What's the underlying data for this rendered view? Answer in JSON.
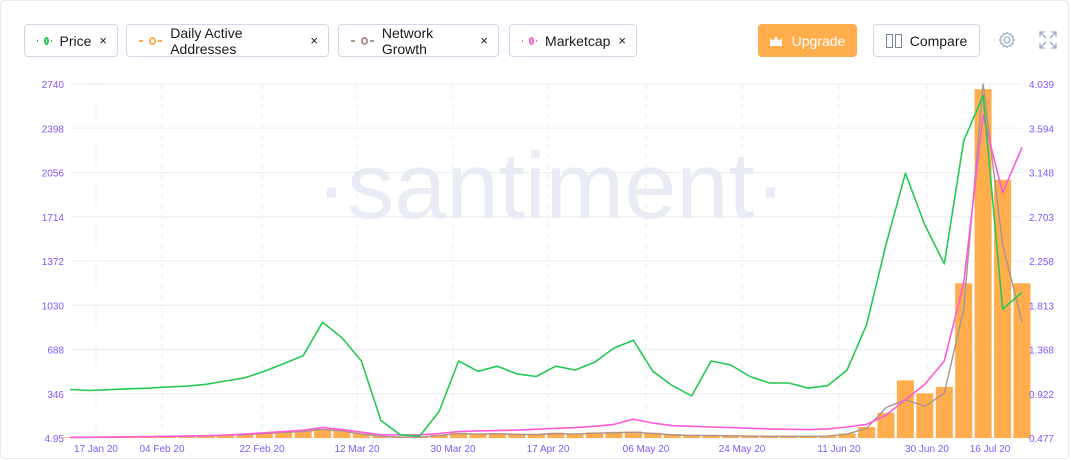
{
  "toolbar": {
    "metrics": [
      {
        "label": "Price",
        "color": "#26c953"
      },
      {
        "label": "Daily Active Addresses",
        "color": "#ffad4d"
      },
      {
        "label": "Network Growth",
        "color": "#ac948c"
      },
      {
        "label": "Marketcap",
        "color": "#ff5bd6"
      }
    ],
    "close_glyph": "×",
    "upgrade_label": "Upgrade",
    "compare_label": "Compare",
    "icons": [
      "crown-icon",
      "compare-icon",
      "settings-icon",
      "fullscreen-icon"
    ]
  },
  "watermark": "·santiment·",
  "colors": {
    "price": "#26c953",
    "daa": "#ffad4d",
    "network_growth": "#ac948c",
    "marketcap": "#ff5bd6",
    "accent": "#ffad4d",
    "axis_text": "#8358ff",
    "grid": "#ebeef5",
    "watermark": "#e9ecf5"
  },
  "chart_data": {
    "type": "line",
    "x_ticks": [
      "17 Jan 20",
      "04 Feb 20",
      "22 Feb 20",
      "12 Mar 20",
      "30 Mar 20",
      "17 Apr 20",
      "06 May 20",
      "24 May 20",
      "11 Jun 20",
      "30 Jun 20",
      "16 Jul 20"
    ],
    "y_left_ticks": [
      "2740",
      "2398",
      "2056",
      "1714",
      "1372",
      "1030",
      "688",
      "346",
      "4.95"
    ],
    "y_right_ticks": [
      "4.039",
      "3.594",
      "3.148",
      "2.703",
      "2.258",
      "1.813",
      "1.368",
      "0.922",
      "0.477"
    ],
    "ylim_left": [
      4.95,
      2740
    ],
    "ylim_right": [
      0.477,
      4.039
    ],
    "grid": true,
    "series": [
      {
        "name": "Price",
        "type": "line",
        "axis": "left",
        "values": [
          380,
          372,
          378,
          385,
          390,
          400,
          405,
          420,
          445,
          470,
          520,
          580,
          640,
          900,
          780,
          600,
          140,
          30,
          20,
          210,
          600,
          520,
          560,
          500,
          480,
          560,
          530,
          590,
          700,
          760,
          520,
          410,
          330,
          600,
          570,
          480,
          430,
          430,
          390,
          410,
          530,
          880,
          1500,
          2050,
          1650,
          1350,
          2300,
          2650,
          1000,
          1130
        ]
      },
      {
        "name": "Daily Active Addresses",
        "type": "bar",
        "axis": "left",
        "values": [
          10,
          12,
          14,
          15,
          18,
          20,
          22,
          25,
          30,
          35,
          45,
          55,
          60,
          75,
          65,
          40,
          20,
          15,
          15,
          30,
          45,
          40,
          42,
          38,
          36,
          45,
          40,
          48,
          52,
          55,
          45,
          35,
          30,
          28,
          26,
          24,
          22,
          22,
          20,
          24,
          40,
          90,
          200,
          450,
          350,
          400,
          1200,
          2700,
          2000,
          1200
        ]
      },
      {
        "name": "Network Growth",
        "type": "line",
        "axis": "left",
        "values": [
          8,
          10,
          12,
          14,
          15,
          18,
          20,
          22,
          26,
          30,
          40,
          48,
          55,
          70,
          60,
          35,
          18,
          12,
          12,
          25,
          40,
          35,
          38,
          33,
          32,
          40,
          35,
          42,
          46,
          50,
          40,
          30,
          25,
          24,
          22,
          20,
          18,
          18,
          17,
          20,
          35,
          80,
          240,
          300,
          250,
          350,
          1000,
          2740,
          1500,
          900
        ]
      },
      {
        "name": "Marketcap",
        "type": "line",
        "axis": "left",
        "values": [
          10,
          10,
          12,
          14,
          16,
          18,
          20,
          22,
          28,
          35,
          45,
          55,
          65,
          85,
          70,
          50,
          30,
          28,
          30,
          40,
          55,
          60,
          62,
          66,
          72,
          80,
          85,
          95,
          110,
          150,
          120,
          100,
          95,
          90,
          85,
          80,
          75,
          72,
          70,
          75,
          90,
          110,
          180,
          300,
          420,
          600,
          1200,
          2500,
          1900,
          2250
        ]
      }
    ]
  }
}
